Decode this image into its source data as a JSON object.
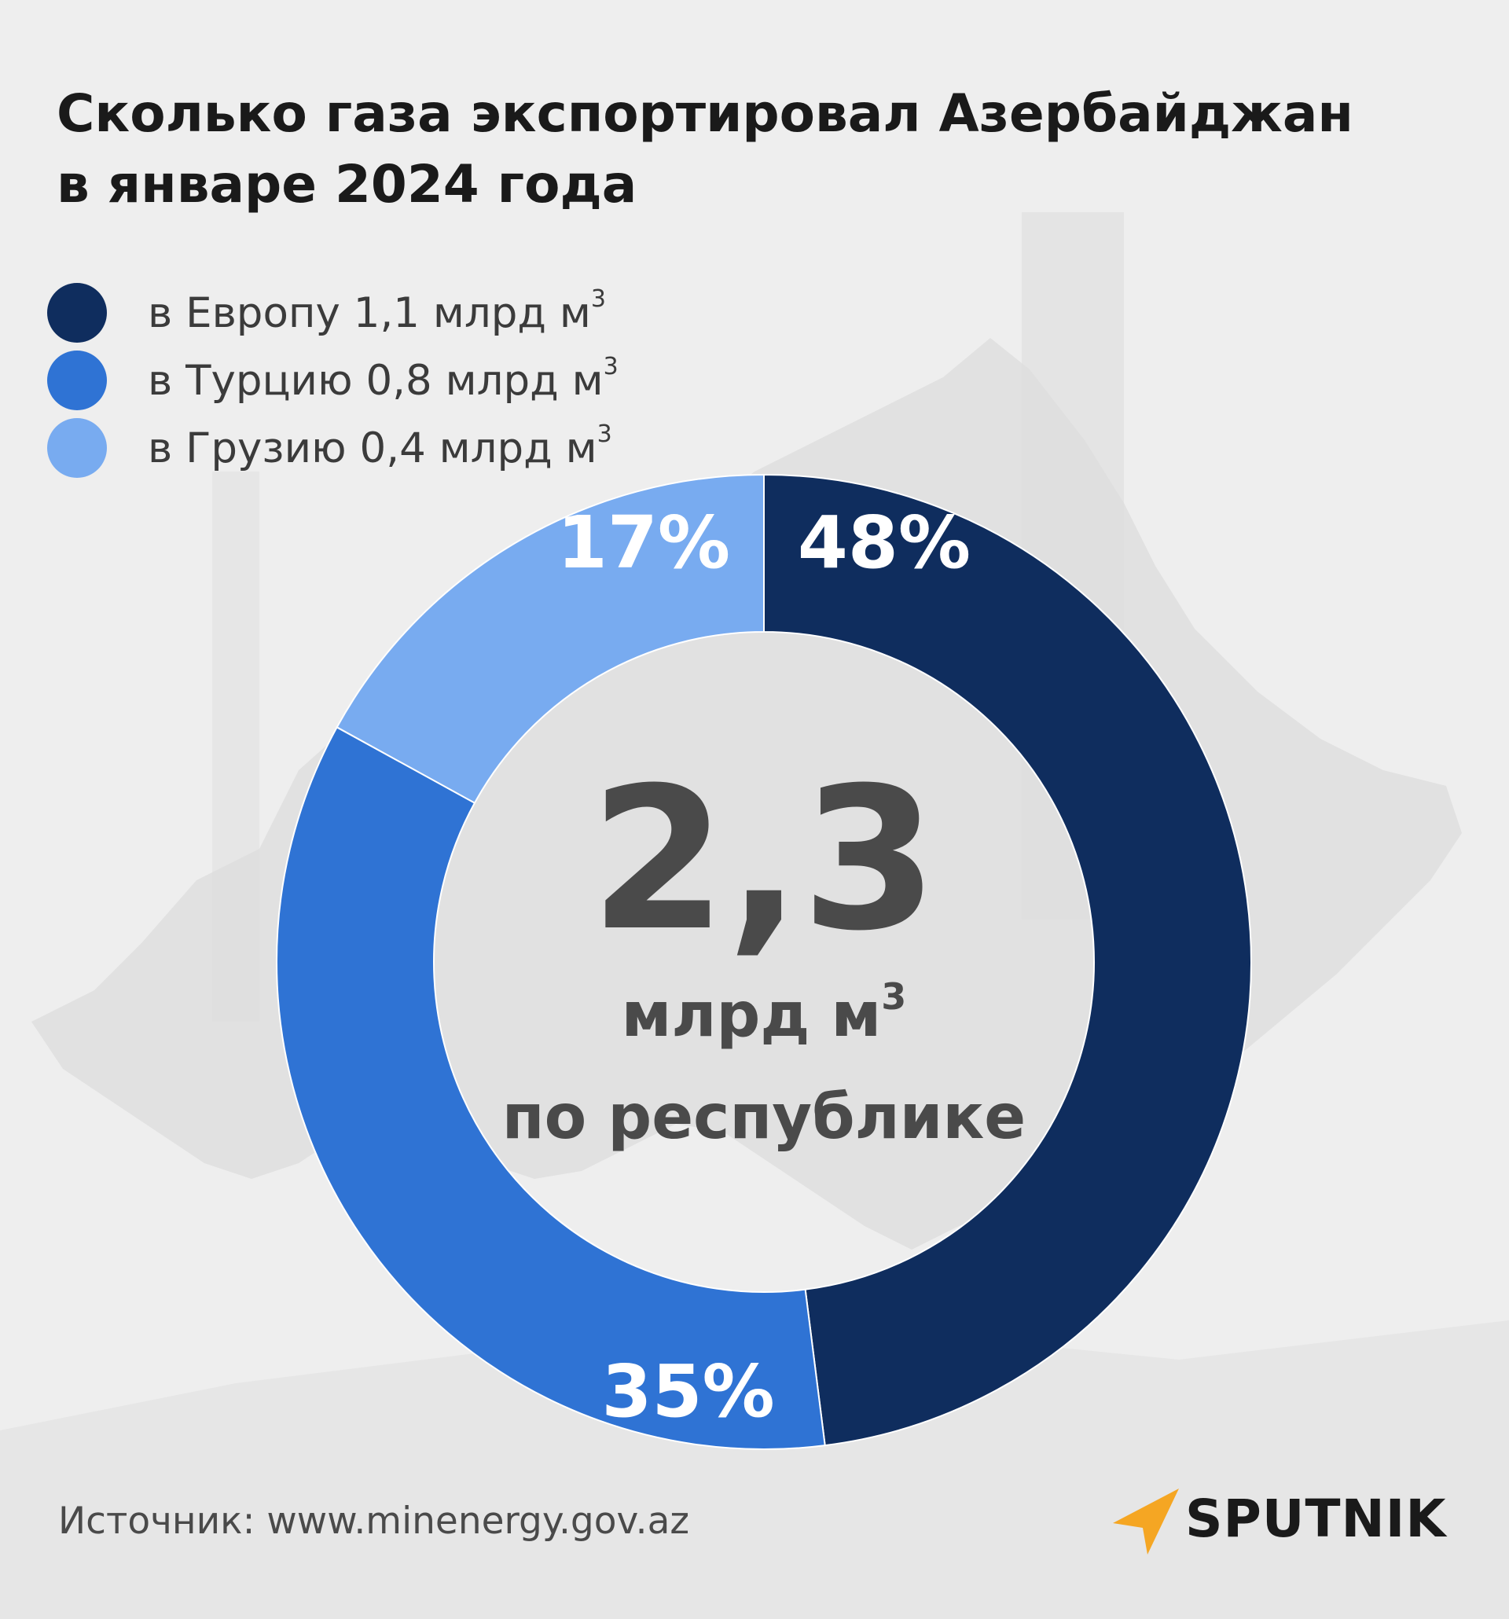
{
  "title": {
    "line1": "Сколько газа экспортировал Азербайджан",
    "line2": "в январе 2024 года"
  },
  "legend": [
    {
      "label": "в Европу 1,1 млрд м",
      "sup": "3",
      "color": "#0f2d5e"
    },
    {
      "label": "в Турцию 0,8 млрд м",
      "sup": "3",
      "color": "#2f73d4"
    },
    {
      "label": "в Грузию 0,4 млрд м",
      "sup": "3",
      "color": "#78abf0"
    }
  ],
  "chart_data": {
    "type": "pie",
    "title": "Сколько газа экспортировал Азербайджан в январе 2024 года",
    "categories": [
      "в Европу",
      "в Турцию",
      "в Грузию"
    ],
    "values": [
      48,
      35,
      17
    ],
    "value_labels": [
      "48%",
      "35%",
      "17%"
    ],
    "volumes": [
      1.1,
      0.8,
      0.4
    ],
    "volume_unit": "млрд м³",
    "colors": [
      "#0f2d5e",
      "#2f73d4",
      "#78abf0"
    ],
    "center": {
      "total": "2,3",
      "unit": "млрд м",
      "unit_sup": "3",
      "caption": "по республике"
    }
  },
  "footer": {
    "source": "Источник: www.minenergy.gov.az",
    "logo": "SPUTNIK"
  },
  "colors": {
    "background": "#eeeeee",
    "label_text": "#ffffff",
    "center_text": "#4a4a4a",
    "logo_accent": "#f5a623"
  }
}
